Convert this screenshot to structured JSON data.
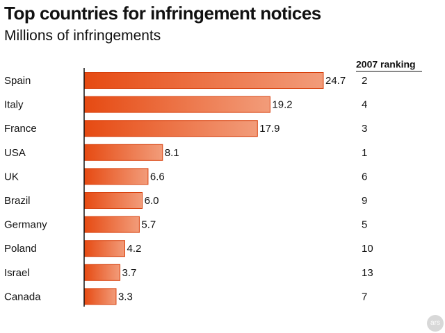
{
  "header": {
    "title": "Top countries for infringement notices",
    "subtitle": "Millions of infringements"
  },
  "chart_data": {
    "type": "bar",
    "orientation": "horizontal",
    "title": "Top countries for infringement notices",
    "subtitle": "Millions of infringements",
    "categories": [
      "Spain",
      "Italy",
      "France",
      "USA",
      "UK",
      "Brazil",
      "Germany",
      "Poland",
      "Israel",
      "Canada"
    ],
    "values": [
      24.7,
      19.2,
      17.9,
      8.1,
      6.6,
      6.0,
      5.7,
      4.2,
      3.7,
      3.3
    ],
    "value_labels": [
      "24.7",
      "19.2",
      "17.9",
      "8.1",
      "6.6",
      "6.0",
      "5.7",
      "4.2",
      "3.7",
      "3.3"
    ],
    "secondary_column": {
      "header": "2007 ranking",
      "values": [
        "2",
        "4",
        "3",
        "1",
        "6",
        "9",
        "5",
        "10",
        "13",
        "7"
      ]
    },
    "xlim": [
      0,
      24.7
    ],
    "grid": false,
    "legend": "none",
    "colors": {
      "bar_start": "#e64a12",
      "bar_end": "#f29c7a",
      "bar_stroke": "#d8400c",
      "axis": "#111111"
    }
  },
  "watermark": {
    "text": "ars",
    "icon": "ars-logo-icon"
  }
}
